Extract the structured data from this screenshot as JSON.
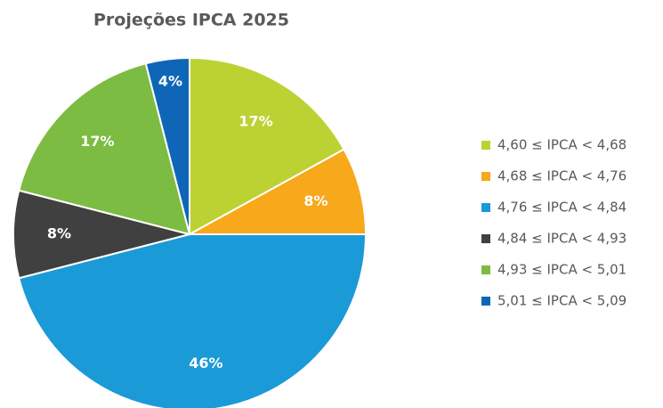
{
  "chart_data": {
    "type": "pie",
    "title": "Projeções IPCA 2025",
    "categories": [
      "4,60 ≤ IPCA < 4,68",
      "4,68 ≤ IPCA < 4,76",
      "4,76 ≤ IPCA < 4,84",
      "4,84 ≤ IPCA < 4,93",
      "4,93 ≤ IPCA < 5,01",
      "5,01 ≤ IPCA < 5,09"
    ],
    "values": [
      17,
      8,
      46,
      8,
      17,
      4
    ],
    "value_labels": [
      "17%",
      "8%",
      "46%",
      "8%",
      "17%",
      "4%"
    ],
    "colors": [
      "#bcd232",
      "#f7a81b",
      "#1b9ad8",
      "#404040",
      "#7cbc42",
      "#0f66b6"
    ],
    "legend": "right"
  }
}
